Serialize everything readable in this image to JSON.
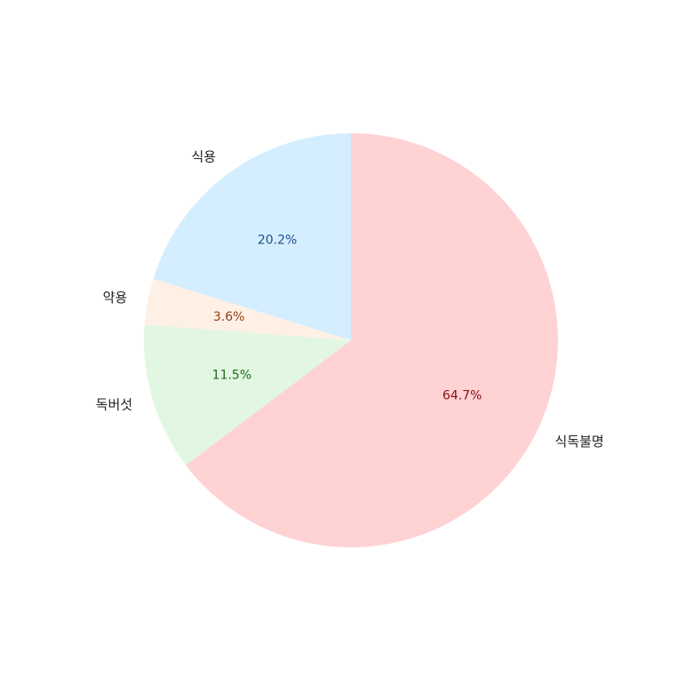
{
  "chart_data": {
    "type": "pie",
    "title": "",
    "start_angle_deg": 90,
    "direction": "clockwise",
    "slices": [
      {
        "label": "식독불명",
        "value": 64.7,
        "pct_label": "64.7%",
        "fill": "#ffd2d4",
        "text_color": "#8b1010"
      },
      {
        "label": "독버섯",
        "value": 11.5,
        "pct_label": "11.5%",
        "fill": "#e2f7e2",
        "text_color": "#1f6e1f"
      },
      {
        "label": "약용",
        "value": 3.6,
        "pct_label": "3.6%",
        "fill": "#fff0e6",
        "text_color": "#9a3d12"
      },
      {
        "label": "식용",
        "value": 20.2,
        "pct_label": "20.2%",
        "fill": "#d4eeff",
        "text_color": "#1f4f86"
      }
    ]
  }
}
